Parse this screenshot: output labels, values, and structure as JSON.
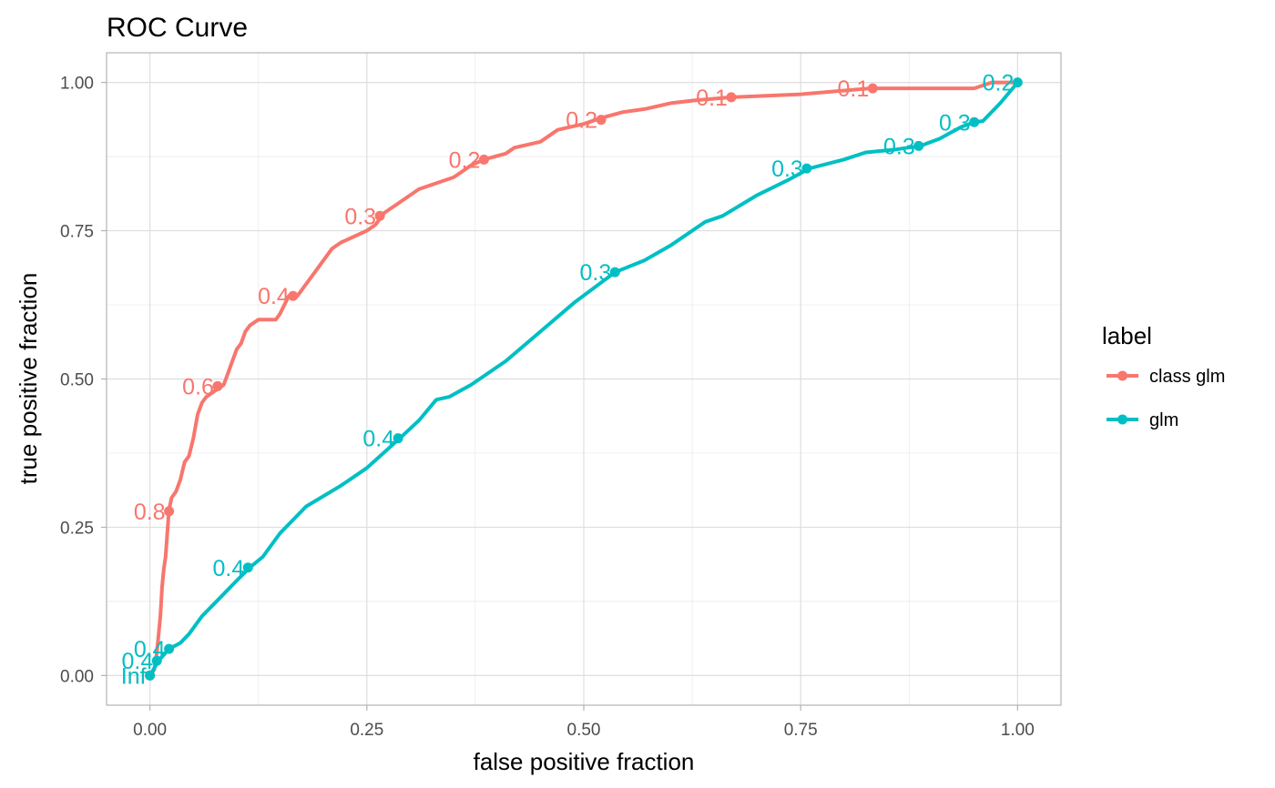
{
  "chart_data": {
    "type": "line",
    "title": "ROC Curve",
    "xlabel": "false positive fraction",
    "ylabel": "true positive fraction",
    "xlim": [
      -0.05,
      1.05
    ],
    "ylim": [
      -0.05,
      1.05
    ],
    "x_ticks": [
      0,
      0.25,
      0.5,
      0.75,
      1
    ],
    "x_tick_labels": [
      "0.00",
      "0.25",
      "0.50",
      "0.75",
      "1.00"
    ],
    "y_ticks": [
      0,
      0.25,
      0.5,
      0.75,
      1
    ],
    "y_tick_labels": [
      "0.00",
      "0.25",
      "0.50",
      "0.75",
      "1.00"
    ],
    "grid": true,
    "legend": {
      "title": "label",
      "position": "right"
    },
    "series": [
      {
        "name": "class glm",
        "color": "#F8766D",
        "points": [
          [
            0,
            0
          ],
          [
            0.005,
            0.01
          ],
          [
            0.008,
            0.04
          ],
          [
            0.01,
            0.07
          ],
          [
            0.012,
            0.1
          ],
          [
            0.014,
            0.15
          ],
          [
            0.016,
            0.18
          ],
          [
            0.018,
            0.2
          ],
          [
            0.02,
            0.24
          ],
          [
            0.022,
            0.28
          ],
          [
            0.025,
            0.3
          ],
          [
            0.03,
            0.31
          ],
          [
            0.035,
            0.33
          ],
          [
            0.04,
            0.36
          ],
          [
            0.045,
            0.37
          ],
          [
            0.05,
            0.4
          ],
          [
            0.055,
            0.44
          ],
          [
            0.06,
            0.46
          ],
          [
            0.065,
            0.47
          ],
          [
            0.075,
            0.48
          ],
          [
            0.085,
            0.49
          ],
          [
            0.09,
            0.51
          ],
          [
            0.095,
            0.53
          ],
          [
            0.1,
            0.55
          ],
          [
            0.105,
            0.56
          ],
          [
            0.11,
            0.58
          ],
          [
            0.115,
            0.59
          ],
          [
            0.125,
            0.6
          ],
          [
            0.145,
            0.6
          ],
          [
            0.15,
            0.61
          ],
          [
            0.16,
            0.64
          ],
          [
            0.17,
            0.64
          ],
          [
            0.18,
            0.66
          ],
          [
            0.19,
            0.68
          ],
          [
            0.2,
            0.7
          ],
          [
            0.21,
            0.72
          ],
          [
            0.22,
            0.73
          ],
          [
            0.235,
            0.74
          ],
          [
            0.25,
            0.75
          ],
          [
            0.26,
            0.76
          ],
          [
            0.27,
            0.78
          ],
          [
            0.29,
            0.8
          ],
          [
            0.31,
            0.82
          ],
          [
            0.33,
            0.83
          ],
          [
            0.35,
            0.84
          ],
          [
            0.37,
            0.86
          ],
          [
            0.385,
            0.87
          ],
          [
            0.41,
            0.88
          ],
          [
            0.42,
            0.89
          ],
          [
            0.45,
            0.9
          ],
          [
            0.47,
            0.92
          ],
          [
            0.5,
            0.93
          ],
          [
            0.52,
            0.94
          ],
          [
            0.545,
            0.95
          ],
          [
            0.57,
            0.955
          ],
          [
            0.6,
            0.965
          ],
          [
            0.63,
            0.97
          ],
          [
            0.67,
            0.975
          ],
          [
            0.75,
            0.98
          ],
          [
            0.83,
            0.99
          ],
          [
            0.95,
            0.99
          ],
          [
            0.97,
            1
          ],
          [
            1,
            1
          ]
        ],
        "threshold_labels": [
          {
            "x": 0.0,
            "y": 0.0,
            "label": "Inf"
          },
          {
            "x": 0.022,
            "y": 0.277,
            "label": "0.8"
          },
          {
            "x": 0.078,
            "y": 0.488,
            "label": "0.6"
          },
          {
            "x": 0.165,
            "y": 0.64,
            "label": "0.4"
          },
          {
            "x": 0.265,
            "y": 0.775,
            "label": "0.3"
          },
          {
            "x": 0.385,
            "y": 0.87,
            "label": "0.2"
          },
          {
            "x": 0.52,
            "y": 0.937,
            "label": "0.2"
          },
          {
            "x": 0.67,
            "y": 0.975,
            "label": "0.1"
          },
          {
            "x": 0.833,
            "y": 0.99,
            "label": "0.1"
          }
        ]
      },
      {
        "name": "glm",
        "color": "#00BFC4",
        "points": [
          [
            0,
            0
          ],
          [
            0.01,
            0.025
          ],
          [
            0.022,
            0.045
          ],
          [
            0.035,
            0.055
          ],
          [
            0.045,
            0.07
          ],
          [
            0.06,
            0.1
          ],
          [
            0.08,
            0.13
          ],
          [
            0.1,
            0.16
          ],
          [
            0.115,
            0.182
          ],
          [
            0.13,
            0.2
          ],
          [
            0.15,
            0.24
          ],
          [
            0.18,
            0.285
          ],
          [
            0.22,
            0.32
          ],
          [
            0.23,
            0.33
          ],
          [
            0.25,
            0.35
          ],
          [
            0.288,
            0.4
          ],
          [
            0.31,
            0.43
          ],
          [
            0.33,
            0.465
          ],
          [
            0.345,
            0.47
          ],
          [
            0.37,
            0.49
          ],
          [
            0.41,
            0.53
          ],
          [
            0.45,
            0.58
          ],
          [
            0.49,
            0.63
          ],
          [
            0.536,
            0.68
          ],
          [
            0.57,
            0.7
          ],
          [
            0.6,
            0.725
          ],
          [
            0.64,
            0.765
          ],
          [
            0.66,
            0.775
          ],
          [
            0.7,
            0.81
          ],
          [
            0.735,
            0.835
          ],
          [
            0.76,
            0.855
          ],
          [
            0.8,
            0.87
          ],
          [
            0.825,
            0.882
          ],
          [
            0.86,
            0.887
          ],
          [
            0.888,
            0.893
          ],
          [
            0.91,
            0.905
          ],
          [
            0.935,
            0.925
          ],
          [
            0.95,
            0.933
          ],
          [
            0.96,
            0.935
          ],
          [
            0.98,
            0.965
          ],
          [
            1,
            1
          ]
        ],
        "threshold_labels": [
          {
            "x": 0.0,
            "y": 0.0,
            "label": "Inf"
          },
          {
            "x": 0.008,
            "y": 0.025,
            "label": "0.4"
          },
          {
            "x": 0.022,
            "y": 0.045,
            "label": "0.4"
          },
          {
            "x": 0.113,
            "y": 0.182,
            "label": "0.4"
          },
          {
            "x": 0.286,
            "y": 0.4,
            "label": "0.4"
          },
          {
            "x": 0.536,
            "y": 0.68,
            "label": "0.3"
          },
          {
            "x": 0.757,
            "y": 0.855,
            "label": "0.3"
          },
          {
            "x": 0.886,
            "y": 0.893,
            "label": "0.3"
          },
          {
            "x": 0.95,
            "y": 0.933,
            "label": "0.3"
          },
          {
            "x": 1.0,
            "y": 1.0,
            "label": "0.2"
          }
        ]
      }
    ]
  }
}
